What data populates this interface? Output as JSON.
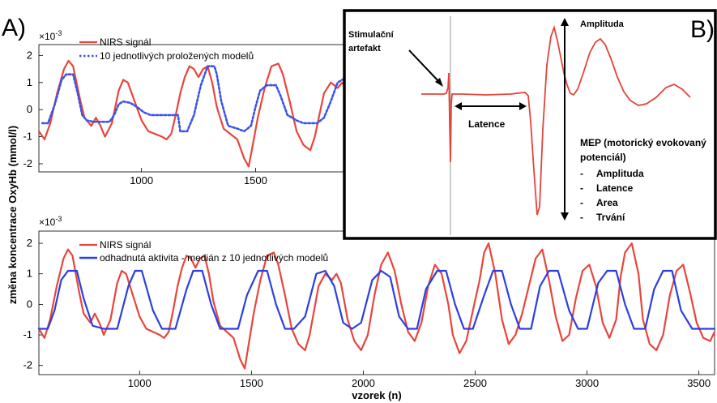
{
  "panel_labels": {
    "a": "A)",
    "b": "B)"
  },
  "shared_ylabel": "změna koncentrace OxyHb (mmol/l)",
  "chart_data": [
    {
      "id": "A-top",
      "type": "line",
      "multiplier": "×10",
      "multiplier_exp": "-3",
      "xlim": [
        550,
        1900
      ],
      "ylim": [
        -2.3,
        2.4
      ],
      "xticks": [
        1000,
        1500
      ],
      "yticks": [
        -2,
        -1,
        0,
        1,
        2
      ],
      "series": [
        {
          "name": "NIRS signál",
          "color": "#e8453c",
          "style": "solid",
          "x": [
            550,
            575,
            600,
            630,
            660,
            680,
            700,
            730,
            750,
            780,
            800,
            820,
            840,
            870,
            900,
            920,
            940,
            970,
            1000,
            1030,
            1060,
            1090,
            1110,
            1130,
            1150,
            1170,
            1190,
            1210,
            1230,
            1250,
            1270,
            1290,
            1310,
            1330,
            1360,
            1390,
            1420,
            1450,
            1470,
            1490,
            1510,
            1540,
            1570,
            1600,
            1620,
            1650,
            1680,
            1710,
            1740,
            1760,
            1780,
            1800,
            1830,
            1860,
            1880,
            1900
          ],
          "y": [
            -0.8,
            -1.1,
            -0.5,
            0.6,
            1.5,
            1.8,
            1.6,
            0.4,
            -0.3,
            -0.6,
            -0.3,
            -0.6,
            -1.0,
            -0.5,
            0.7,
            1.1,
            1.0,
            0.3,
            -0.4,
            -0.8,
            -0.9,
            -1.0,
            -1.1,
            -0.9,
            -0.2,
            0.6,
            1.2,
            1.6,
            1.5,
            1.2,
            1.5,
            1.6,
            1.0,
            0.1,
            -0.7,
            -0.9,
            -1.1,
            -1.8,
            -2.1,
            -1.2,
            -0.3,
            0.8,
            1.6,
            1.7,
            1.3,
            0.3,
            -0.8,
            -1.3,
            -1.5,
            -1.0,
            -0.2,
            0.6,
            1.0,
            0.8,
            1.0,
            0.7
          ]
        },
        {
          "name": "10 jednotlivých proložených modelů",
          "color": "#3b54e6",
          "style": "dotted",
          "x": [
            565,
            590,
            620,
            650,
            670,
            700,
            720,
            740,
            760,
            790,
            830,
            860,
            880,
            900,
            920,
            950,
            980,
            1010,
            1040,
            1070,
            1100,
            1130,
            1160,
            1170,
            1200,
            1230,
            1260,
            1290,
            1320,
            1330,
            1350,
            1380,
            1420,
            1450,
            1480,
            1500,
            1520,
            1550,
            1590,
            1610,
            1640,
            1680,
            1710,
            1740,
            1770,
            1800,
            1830,
            1860,
            1900
          ],
          "y": [
            -0.5,
            -0.5,
            0.2,
            1.1,
            1.3,
            1.3,
            0.6,
            -0.2,
            -0.4,
            -0.45,
            -0.45,
            -0.45,
            -0.2,
            0.2,
            0.3,
            0.25,
            0.1,
            -0.1,
            -0.2,
            -0.2,
            -0.2,
            -0.2,
            -0.2,
            -0.8,
            -0.8,
            -0.2,
            0.9,
            1.6,
            1.6,
            1.3,
            0.3,
            -0.6,
            -0.7,
            -0.8,
            -0.6,
            0.1,
            0.7,
            0.9,
            0.9,
            0.5,
            -0.2,
            -0.4,
            -0.5,
            -0.5,
            -0.5,
            -0.3,
            0.3,
            1.0,
            1.2
          ]
        }
      ]
    },
    {
      "id": "A-bottom",
      "type": "line",
      "multiplier": "×10",
      "multiplier_exp": "-3",
      "xlabel": "vzorek (n)",
      "xlim": [
        550,
        3570
      ],
      "ylim": [
        -2.3,
        2.4
      ],
      "xticks": [
        1000,
        1500,
        2000,
        2500,
        3000,
        3500
      ],
      "yticks": [
        -2,
        -1,
        0,
        1,
        2
      ],
      "series": [
        {
          "name": "NIRS signál",
          "color": "#e8453c",
          "style": "solid",
          "x": [
            550,
            575,
            600,
            630,
            660,
            680,
            700,
            730,
            750,
            780,
            800,
            820,
            840,
            870,
            900,
            920,
            940,
            970,
            1000,
            1030,
            1060,
            1090,
            1110,
            1130,
            1150,
            1170,
            1190,
            1210,
            1230,
            1250,
            1270,
            1290,
            1310,
            1330,
            1360,
            1390,
            1420,
            1450,
            1470,
            1490,
            1510,
            1540,
            1570,
            1600,
            1620,
            1650,
            1680,
            1710,
            1740,
            1760,
            1780,
            1800,
            1830,
            1860,
            1880,
            1900,
            1930,
            1960,
            1990,
            2020,
            2050,
            2080,
            2110,
            2140,
            2170,
            2200,
            2230,
            2260,
            2290,
            2320,
            2350,
            2380,
            2400,
            2430,
            2460,
            2490,
            2520,
            2540,
            2560,
            2590,
            2620,
            2650,
            2680,
            2710,
            2740,
            2770,
            2800,
            2830,
            2860,
            2890,
            2920,
            2950,
            2980,
            3010,
            3040,
            3070,
            3100,
            3130,
            3150,
            3170,
            3200,
            3230,
            3250,
            3280,
            3310,
            3340,
            3370,
            3400,
            3430,
            3460,
            3490,
            3520,
            3550,
            3570
          ],
          "y": [
            -0.8,
            -1.1,
            -0.5,
            0.6,
            1.5,
            1.8,
            1.6,
            0.4,
            -0.3,
            -0.6,
            -0.3,
            -0.6,
            -1.0,
            -0.5,
            0.7,
            1.1,
            1.0,
            0.3,
            -0.4,
            -0.8,
            -0.9,
            -1.0,
            -1.1,
            -0.9,
            -0.2,
            0.6,
            1.2,
            1.6,
            1.5,
            1.2,
            1.5,
            1.6,
            1.0,
            0.1,
            -0.7,
            -0.9,
            -1.1,
            -1.8,
            -2.1,
            -1.2,
            -0.3,
            0.8,
            1.6,
            1.7,
            1.3,
            0.3,
            -0.8,
            -1.3,
            -1.5,
            -1.0,
            -0.2,
            0.6,
            1.0,
            0.8,
            1.0,
            0.7,
            -0.5,
            -1.2,
            -1.5,
            -1.0,
            0.3,
            1.3,
            1.7,
            1.1,
            0.0,
            -0.9,
            -1.2,
            -0.6,
            0.6,
            1.3,
            1.0,
            0.0,
            -1.0,
            -1.6,
            -1.2,
            -0.2,
            0.8,
            1.7,
            2.0,
            1.0,
            -0.5,
            -1.3,
            -1.0,
            -0.3,
            0.6,
            1.5,
            1.8,
            0.8,
            -0.4,
            -1.2,
            -1.0,
            0.2,
            1.1,
            1.3,
            0.6,
            -0.6,
            -1.1,
            -0.5,
            0.9,
            1.7,
            2.0,
            1.0,
            -0.5,
            -1.3,
            -1.5,
            -1.0,
            0.3,
            1.1,
            1.3,
            0.4,
            -0.6,
            -1.1,
            -1.2,
            -0.9
          ]
        },
        {
          "name": "odhadnutá aktivita - medián z 10 jednotlivých modelů",
          "color": "#2b3fe0",
          "style": "solid",
          "x": [
            550,
            590,
            620,
            650,
            680,
            720,
            750,
            790,
            840,
            900,
            950,
            980,
            1010,
            1060,
            1100,
            1160,
            1210,
            1240,
            1280,
            1320,
            1360,
            1400,
            1440,
            1480,
            1530,
            1570,
            1610,
            1650,
            1690,
            1740,
            1790,
            1830,
            1870,
            1910,
            1950,
            1990,
            2040,
            2080,
            2120,
            2160,
            2200,
            2240,
            2280,
            2330,
            2370,
            2410,
            2450,
            2490,
            2540,
            2580,
            2620,
            2660,
            2700,
            2750,
            2790,
            2830,
            2870,
            2920,
            2960,
            3000,
            3050,
            3090,
            3130,
            3170,
            3210,
            3260,
            3300,
            3340,
            3380,
            3420,
            3470,
            3510,
            3550,
            3570
          ],
          "y": [
            -0.8,
            -0.8,
            -0.2,
            0.8,
            1.1,
            1.1,
            0.2,
            -0.7,
            -0.8,
            -0.8,
            0.6,
            1.1,
            1.1,
            -0.2,
            -0.8,
            -0.8,
            0.5,
            1.1,
            1.1,
            0.0,
            -0.8,
            -0.8,
            -0.8,
            0.3,
            1.1,
            1.1,
            0.0,
            -0.8,
            -0.8,
            -0.4,
            1.0,
            1.1,
            0.6,
            -0.6,
            -0.8,
            -0.6,
            0.8,
            1.1,
            0.9,
            -0.4,
            -0.8,
            -0.8,
            0.5,
            1.1,
            1.1,
            0.0,
            -0.8,
            -0.8,
            0.3,
            1.1,
            1.1,
            0.0,
            -0.8,
            -0.8,
            0.6,
            1.1,
            1.1,
            -0.2,
            -0.8,
            -0.8,
            0.7,
            1.1,
            1.1,
            0.0,
            -0.8,
            -0.8,
            0.5,
            1.1,
            1.1,
            -0.2,
            -0.8,
            -0.8,
            -0.8,
            -0.8
          ]
        }
      ]
    }
  ],
  "panel_b": {
    "annotations": {
      "stim": [
        "Stimulační",
        "artefakt"
      ],
      "latence": "Latence",
      "amplituda": "Amplituda",
      "mep_title": [
        "MEP (motorický evokovaný",
        "potenciál)"
      ],
      "mep_items": [
        "Amplituda",
        "Latence",
        "Area",
        "Trvání"
      ],
      "bullet": "-"
    },
    "trace_color": "#e3443a"
  }
}
